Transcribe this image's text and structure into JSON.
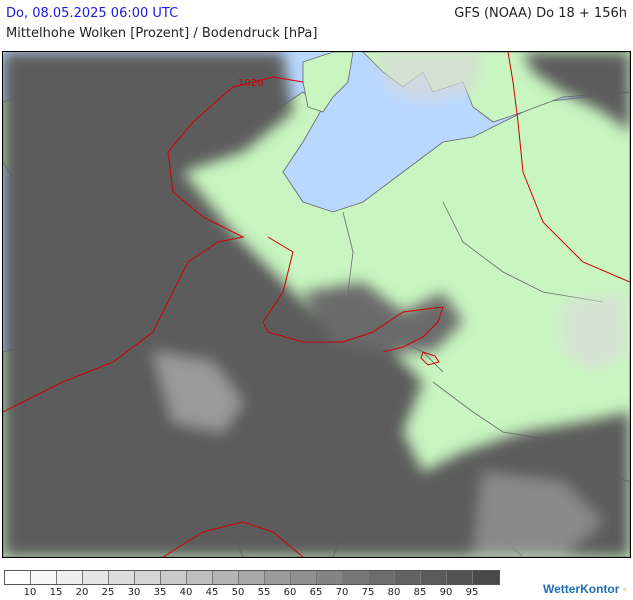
{
  "header": {
    "date": "Do, 08.05.2025 06:00 UTC",
    "model": "GFS (NOAA) Do 18 + 156h",
    "parameter": "Mittelhohe Wolken [Prozent] / Bodendruck [hPa]"
  },
  "map": {
    "isobar_label": "1020",
    "colors": {
      "sea": "#b8d8ff",
      "land": "#c8f5c0",
      "cloud_dense": "#5c5c5c",
      "isobar": "#cc0000",
      "border": "#666666"
    }
  },
  "legend": {
    "ticks": [
      "10",
      "15",
      "20",
      "25",
      "30",
      "35",
      "40",
      "45",
      "50",
      "55",
      "60",
      "65",
      "70",
      "75",
      "80",
      "85",
      "90",
      "95"
    ],
    "colors": [
      "#ffffff",
      "#f7f7f7",
      "#eeeeee",
      "#e6e6e6",
      "#dddddd",
      "#d4d4d4",
      "#cacaca",
      "#bfbfbf",
      "#b4b4b4",
      "#a8a8a8",
      "#9c9c9c",
      "#909090",
      "#848484",
      "#787878",
      "#6d6d6d",
      "#636363",
      "#5a5a5a",
      "#525252",
      "#4a4a4a"
    ]
  },
  "branding": {
    "logo": "WetterKontor"
  }
}
